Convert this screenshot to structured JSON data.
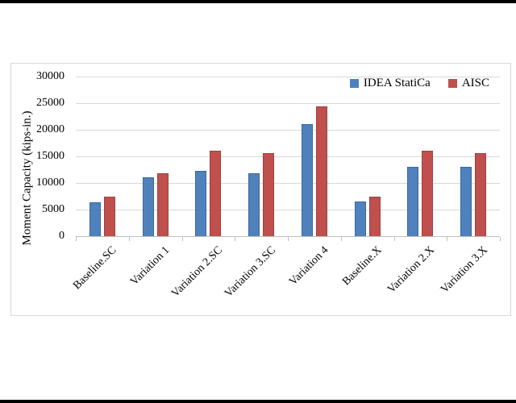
{
  "figure": {
    "background": "#ffffff",
    "letterbox_color": "#000000"
  },
  "chart_data": {
    "type": "bar",
    "title": "",
    "xlabel": "",
    "ylabel": "Moment Capacity (kips-in.)",
    "ylim": [
      0,
      30000
    ],
    "yticks": [
      0,
      5000,
      10000,
      15000,
      20000,
      25000,
      30000
    ],
    "categories": [
      "Baseline.SC",
      "Variation 1",
      "Variation 2.SC",
      "Variation 3.SC",
      "Variation 4",
      "Baseline.X",
      "Variation 2.X",
      "Variation 3.X"
    ],
    "series": [
      {
        "name": "IDEA StatiCa",
        "color": "#4F81BD",
        "border_color": "#3A679C",
        "values": [
          6400,
          11100,
          12200,
          11800,
          21100,
          6500,
          13000,
          13100
        ]
      },
      {
        "name": "AISC",
        "color": "#C0504D",
        "border_color": "#9C413E",
        "values": [
          7400,
          11800,
          16000,
          15600,
          24400,
          7400,
          16000,
          15600
        ]
      }
    ],
    "legend_position": "top-right",
    "grid": true,
    "grid_color": "#d9d9d9",
    "axis_color": "#bfbfbf",
    "frame_color": "#d9d9d9",
    "text_color": "#000000"
  }
}
